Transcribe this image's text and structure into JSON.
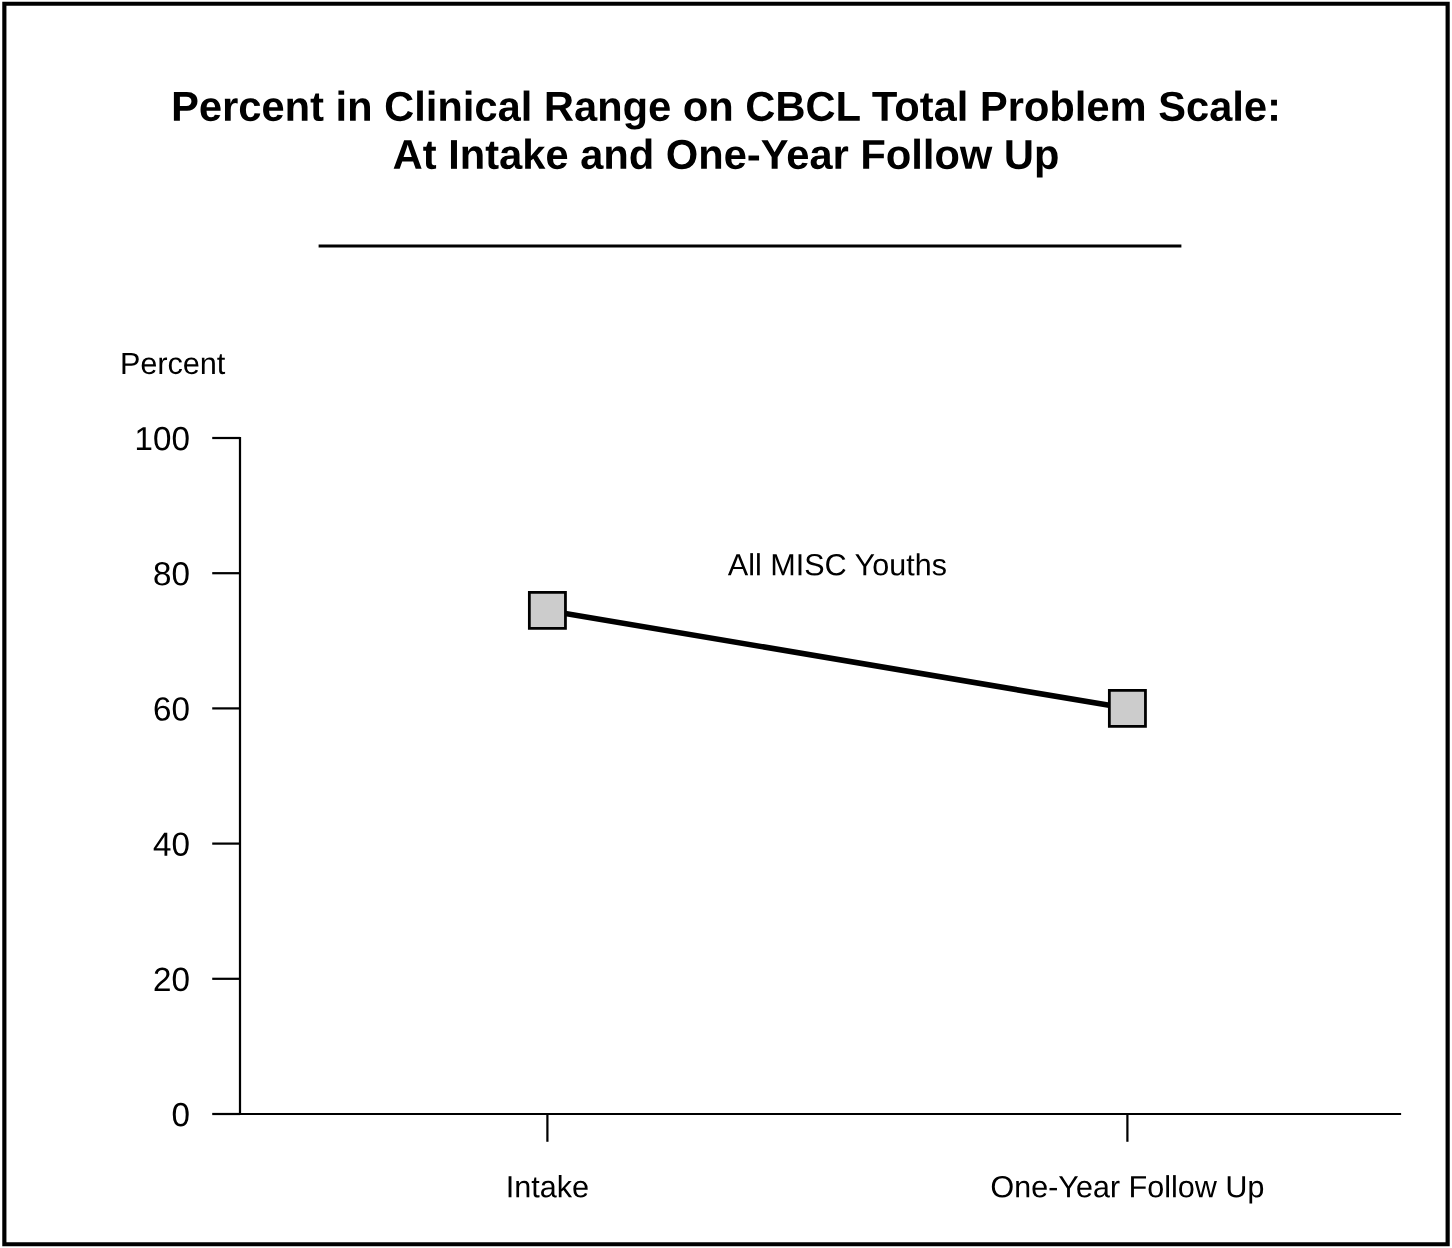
{
  "chart_data": {
    "type": "line",
    "title": "Percent in Clinical Range on CBCL Total Problem Scale:\nAt Intake and One-Year Follow Up",
    "ylabel": "Percent",
    "categories": [
      "Intake",
      "One-Year Follow Up"
    ],
    "series": [
      {
        "name": "All MISC Youths",
        "color": "#000000",
        "values": [
          74.5,
          60
        ]
      }
    ],
    "ylim": [
      0,
      100
    ],
    "yticks": [
      0,
      20,
      40,
      60,
      80,
      100
    ],
    "grid": false,
    "legend": false,
    "marker": "square",
    "line_style": "solid"
  }
}
